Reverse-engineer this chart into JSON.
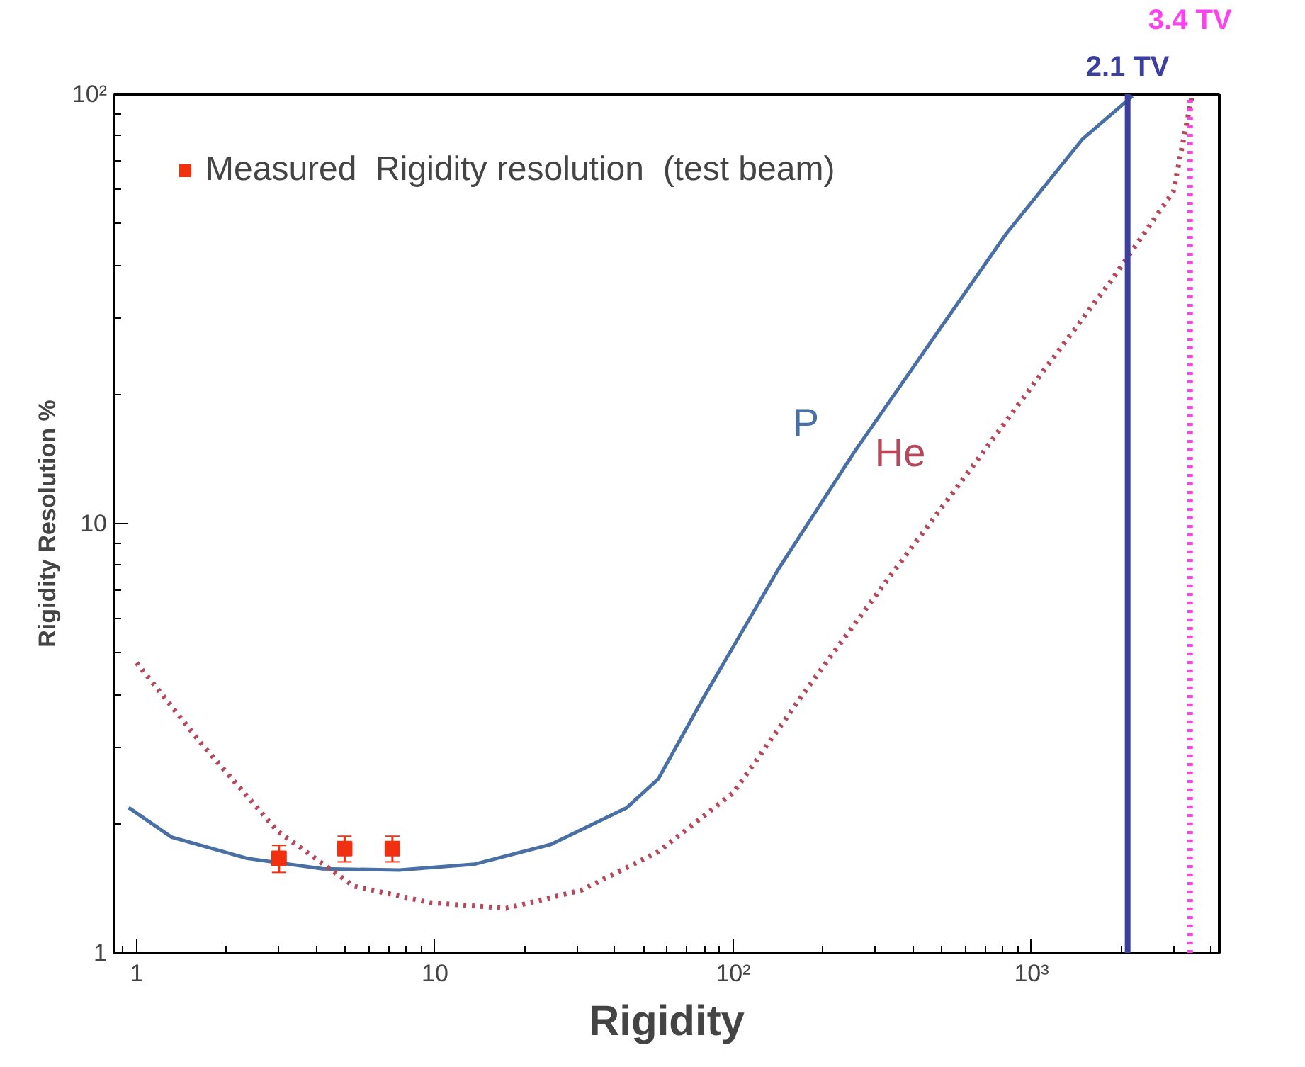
{
  "chart_data": {
    "type": "line",
    "xlabel": "Rigidity",
    "ylabel": "Rigidity Resolution %",
    "log": "xy",
    "xlim": [
      0.84,
      4260
    ],
    "ylim": [
      1,
      100
    ],
    "xticks": [
      1,
      10,
      {
        "value": 100,
        "label": "10²"
      },
      {
        "value": 1000,
        "label": "10³"
      }
    ],
    "yticks": [
      1,
      10,
      {
        "value": 100,
        "label": "10²"
      }
    ],
    "grid": false,
    "legend": "top left",
    "series": [
      {
        "name": "P",
        "color": "#4a6fa5",
        "line_style": "solid",
        "x": [
          0.94,
          1.31,
          2.35,
          4.2,
          7.6,
          13.6,
          24.5,
          44,
          56,
          79,
          142,
          255,
          458,
          824,
          1480,
          2180
        ],
        "values": [
          2.18,
          1.86,
          1.66,
          1.57,
          1.56,
          1.61,
          1.79,
          2.18,
          2.54,
          3.9,
          7.85,
          14.7,
          26.4,
          47.4,
          78.5,
          99
        ]
      },
      {
        "name": "He",
        "color": "#b5485a",
        "line_style": "dotted",
        "x": [
          1,
          1.65,
          2.97,
          5.35,
          9.6,
          17.3,
          31,
          56,
          100,
          180,
          324,
          580,
          1040,
          1870,
          2990,
          3440
        ],
        "values": [
          4.74,
          3.07,
          1.92,
          1.43,
          1.31,
          1.27,
          1.4,
          1.72,
          2.36,
          4.2,
          7.3,
          12.5,
          21.6,
          37.2,
          59.4,
          98
        ]
      },
      {
        "type": "scatter",
        "name": "Measured  Rigidity resolution  (test beam)",
        "color": "#f03010",
        "marker": "square",
        "x": [
          3.0,
          4.98,
          7.2
        ],
        "values": [
          1.66,
          1.75,
          1.75
        ],
        "errors": [
          0.12,
          0.12,
          0.12
        ]
      }
    ],
    "ref_lines": [
      {
        "axis": "x",
        "value": 2100,
        "label": "2.1 TV",
        "color": "#3a3fa0",
        "line_style": "solid"
      },
      {
        "axis": "x",
        "value": 3400,
        "label": "3.4 TV",
        "color": "#ff40f0",
        "line_style": "dotted"
      }
    ]
  }
}
